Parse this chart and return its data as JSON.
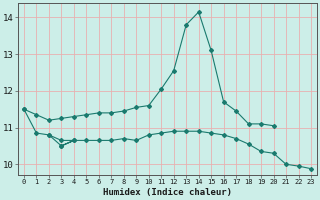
{
  "xlabel": "Humidex (Indice chaleur)",
  "bg_color": "#cceee8",
  "grid_color": "#e8b0b0",
  "line_color": "#1a7a6e",
  "xlim": [
    -0.5,
    23.5
  ],
  "ylim": [
    9.7,
    14.4
  ],
  "xticks": [
    0,
    1,
    2,
    3,
    4,
    5,
    6,
    7,
    8,
    9,
    10,
    11,
    12,
    13,
    14,
    15,
    16,
    17,
    18,
    19,
    20,
    21,
    22,
    23
  ],
  "yticks": [
    10,
    11,
    12,
    13,
    14
  ],
  "series": [
    {
      "x": [
        0,
        1,
        2,
        3,
        4,
        5,
        6,
        7,
        8,
        9,
        10,
        11,
        12,
        13,
        14,
        15,
        16,
        17,
        18,
        19,
        20
      ],
      "y": [
        11.5,
        11.35,
        11.2,
        11.25,
        11.3,
        11.35,
        11.4,
        11.4,
        11.45,
        11.55,
        11.6,
        12.05,
        12.55,
        13.8,
        14.15,
        13.1,
        11.7,
        11.45,
        11.1,
        11.1,
        11.05
      ]
    },
    {
      "x": [
        0,
        1,
        2,
        3,
        4,
        5,
        6,
        7,
        8,
        9,
        10,
        11,
        12,
        13,
        14,
        15,
        16,
        17,
        18,
        19,
        20,
        21,
        22,
        23
      ],
      "y": [
        11.5,
        10.85,
        10.8,
        10.65,
        10.65,
        10.65,
        10.65,
        10.65,
        10.7,
        10.65,
        10.8,
        10.85,
        10.9,
        10.9,
        10.9,
        10.85,
        10.8,
        10.7,
        10.55,
        10.35,
        10.3,
        10.0,
        9.95,
        9.88
      ]
    },
    {
      "x": [
        2,
        3,
        4,
        3
      ],
      "y": [
        10.8,
        10.5,
        10.65,
        10.5
      ]
    }
  ]
}
